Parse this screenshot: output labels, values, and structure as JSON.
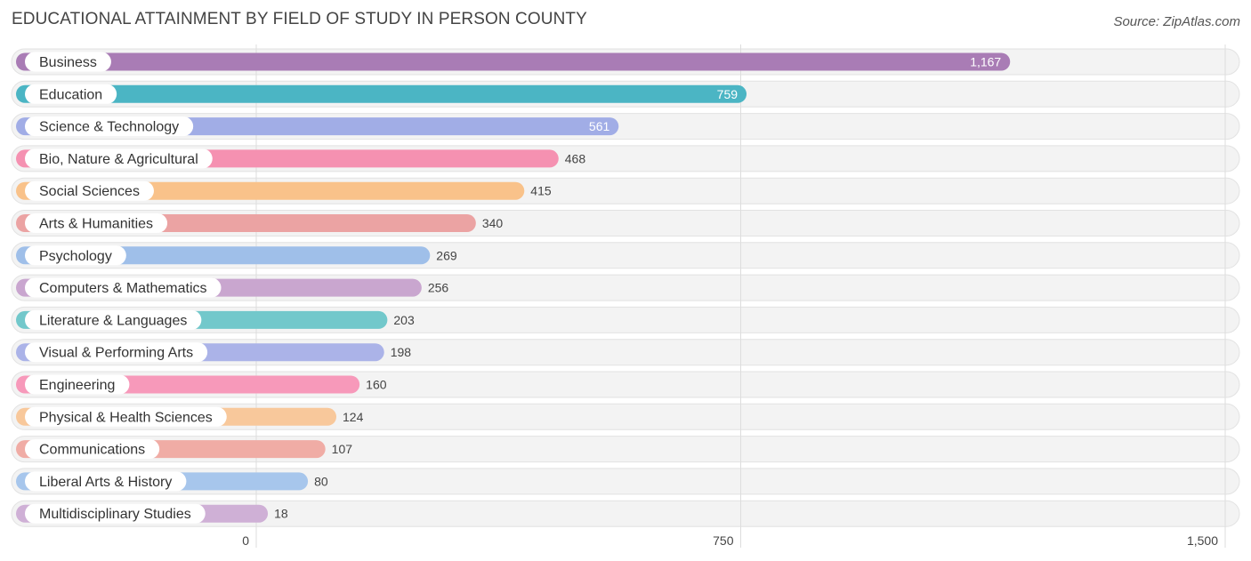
{
  "header": {
    "title": "EDUCATIONAL ATTAINMENT BY FIELD OF STUDY IN PERSON COUNTY",
    "source": "Source: ZipAtlas.com"
  },
  "chart_data": {
    "type": "bar",
    "orientation": "horizontal",
    "title": "EDUCATIONAL ATTAINMENT BY FIELD OF STUDY IN PERSON COUNTY",
    "xlabel": "",
    "ylabel": "",
    "xlim": [
      0,
      1500
    ],
    "xticks": [
      0,
      750,
      1500
    ],
    "xtick_labels": [
      "0",
      "750",
      "1,500"
    ],
    "grid": true,
    "categories": [
      "Business",
      "Education",
      "Science & Technology",
      "Bio, Nature & Agricultural",
      "Social Sciences",
      "Arts & Humanities",
      "Psychology",
      "Computers & Mathematics",
      "Literature & Languages",
      "Visual & Performing Arts",
      "Engineering",
      "Physical & Health Sciences",
      "Communications",
      "Liberal Arts & History",
      "Multidisciplinary Studies"
    ],
    "values": [
      1167,
      759,
      561,
      468,
      415,
      340,
      269,
      256,
      203,
      198,
      160,
      124,
      107,
      80,
      18
    ],
    "value_labels": [
      "1,167",
      "759",
      "561",
      "468",
      "415",
      "340",
      "269",
      "256",
      "203",
      "198",
      "160",
      "124",
      "107",
      "80",
      "18"
    ],
    "colors": [
      "#a97cb5",
      "#4bb5c4",
      "#a1ade6",
      "#f591b1",
      "#f9c28a",
      "#eba3a3",
      "#9fbfe9",
      "#c9a6cf",
      "#72c8cb",
      "#abb3e8",
      "#f799ba",
      "#f8c89b",
      "#f0aca5",
      "#a7c6ec",
      "#cfb0d6"
    ]
  }
}
